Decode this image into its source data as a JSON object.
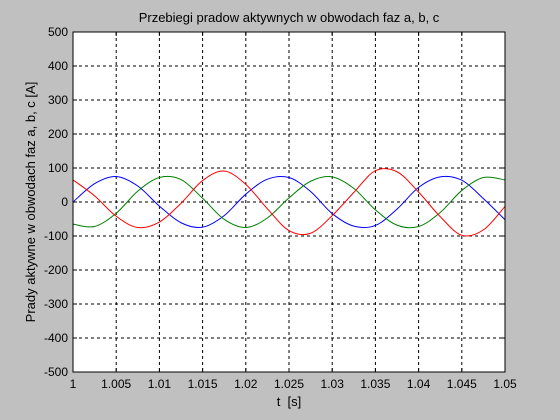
{
  "chart_data": {
    "type": "line",
    "title": "Przebiegi pradow aktywnych w obwodach faz a, b, c",
    "xlabel": "t  [s]",
    "ylabel": "Prady aktywne w obwodach faz a, b, c [A]",
    "xlim": [
      1,
      1.05
    ],
    "ylim": [
      -500,
      500
    ],
    "xticks": [
      1,
      1.005,
      1.01,
      1.015,
      1.02,
      1.025,
      1.03,
      1.035,
      1.04,
      1.045,
      1.05
    ],
    "xtick_labels": [
      "1",
      "1.005",
      "1.01",
      "1.015",
      "1.02",
      "1.025",
      "1.03",
      "1.035",
      "1.04",
      "1.045",
      "1.05"
    ],
    "yticks": [
      -500,
      -400,
      -300,
      -200,
      -100,
      0,
      100,
      200,
      300,
      400,
      500
    ],
    "ytick_labels": [
      "-500",
      "-400",
      "-300",
      "-200",
      "-100",
      "0",
      "100",
      "200",
      "300",
      "400",
      "500"
    ],
    "grid": true,
    "series": [
      {
        "color": "#0000ff",
        "x": [
          1,
          1.0025,
          1.005,
          1.0075,
          1.01,
          1.0125,
          1.015,
          1.0175,
          1.02,
          1.0225,
          1.025,
          1.0275,
          1.03,
          1.0325,
          1.035,
          1.0375,
          1.04,
          1.0425,
          1.045,
          1.0475,
          1.05
        ],
        "y": [
          0,
          54,
          75,
          47,
          -12,
          -61,
          -74,
          -40,
          23,
          67,
          72,
          31,
          -34,
          -71,
          -69,
          -21,
          43,
          74,
          64,
          10,
          -52
        ]
      },
      {
        "color": "#008000",
        "x": [
          1,
          1.0025,
          1.005,
          1.0075,
          1.01,
          1.0125,
          1.015,
          1.0175,
          1.02,
          1.0225,
          1.025,
          1.0275,
          1.03,
          1.0325,
          1.035,
          1.0375,
          1.04,
          1.0425,
          1.045,
          1.0475,
          1.05
        ],
        "y": [
          -65,
          -72,
          -33,
          32,
          72,
          66,
          11,
          -51,
          -75,
          -47,
          12,
          61,
          74,
          40,
          -23,
          -68,
          -72,
          -31,
          34,
          72,
          65
        ]
      },
      {
        "color": "#ff0000",
        "x": [
          1,
          1.0025,
          1.005,
          1.0075,
          1.01,
          1.0125,
          1.015,
          1.0175,
          1.02,
          1.0225,
          1.025,
          1.0275,
          1.03,
          1.0325,
          1.035,
          1.0375,
          1.04,
          1.0425,
          1.045,
          1.0475,
          1.05
        ],
        "y": [
          65,
          18,
          -42,
          -75,
          -59,
          -4,
          63,
          91,
          52,
          -20,
          -84,
          -92,
          -40,
          28,
          92,
          89,
          29,
          -43,
          -98,
          -82,
          -13
        ]
      }
    ]
  }
}
